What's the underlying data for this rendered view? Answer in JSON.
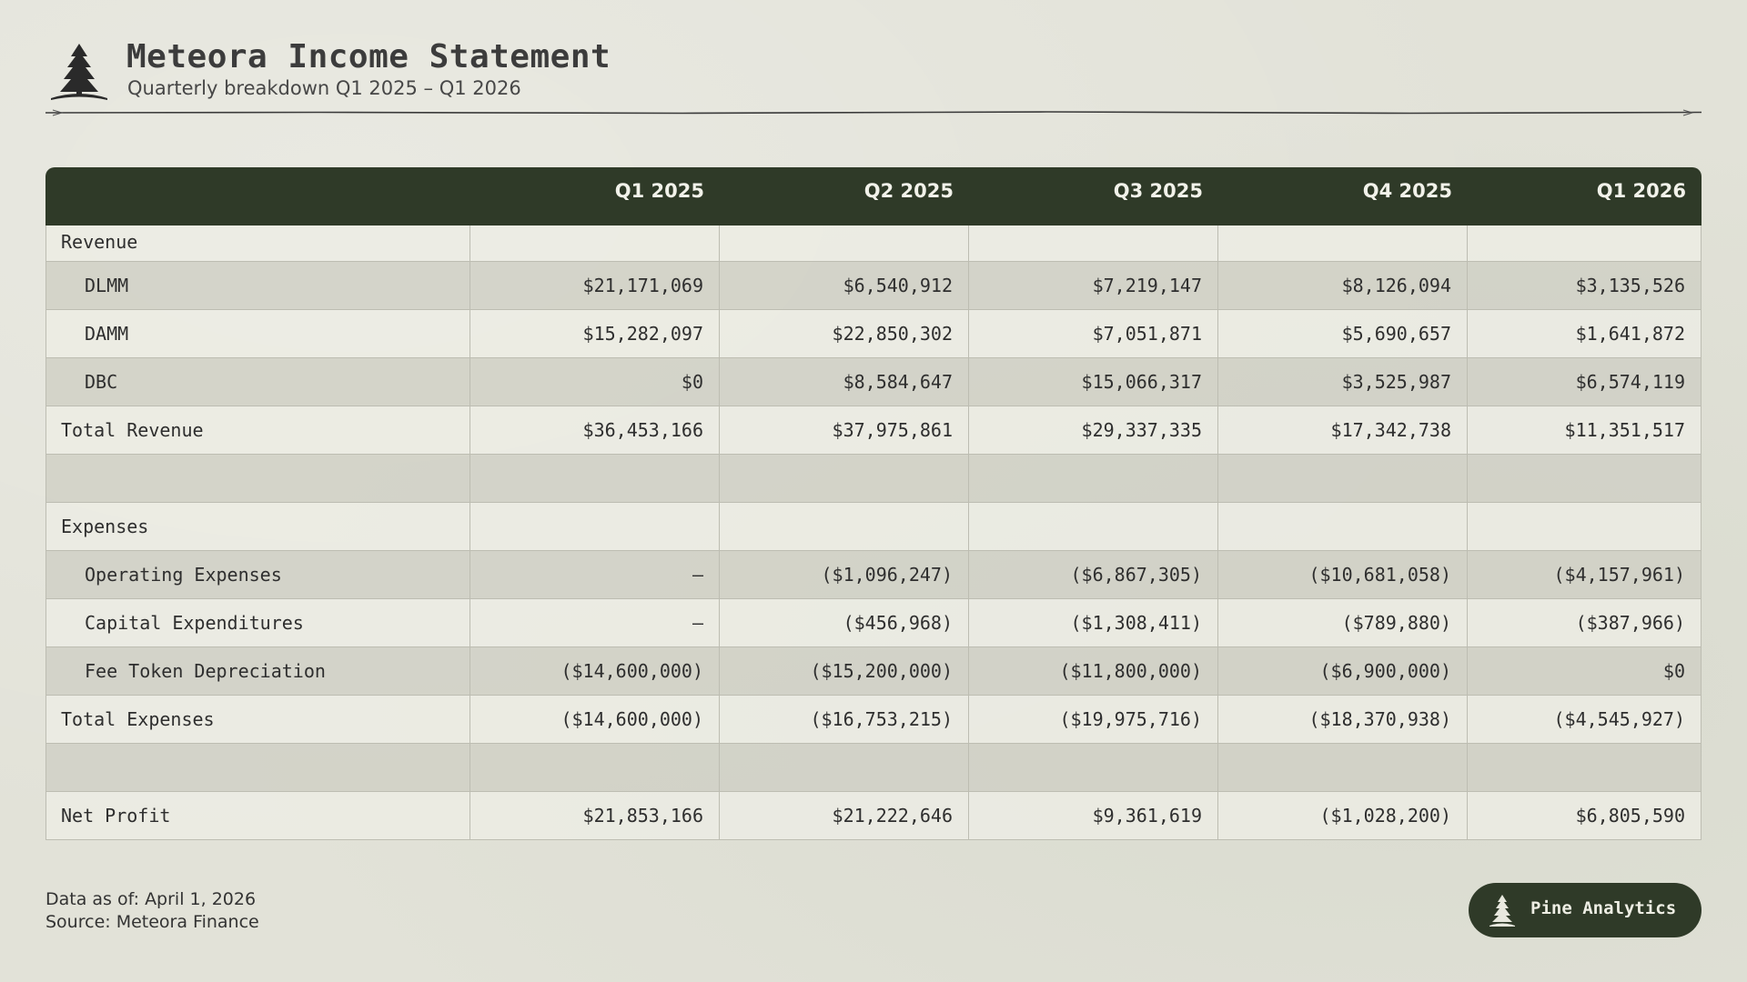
{
  "header": {
    "title": "Meteora Income Statement",
    "subtitle": "Quarterly breakdown Q1 2025 – Q1 2026",
    "logo_icon": "pine-tree-icon"
  },
  "table": {
    "columns": [
      "",
      "Q1 2025",
      "Q2 2025",
      "Q3 2025",
      "Q4 2025",
      "Q1 2026"
    ],
    "rows": [
      {
        "label": "Revenue",
        "values": [
          "",
          "",
          "",
          "",
          ""
        ]
      },
      {
        "label": "DLMM",
        "values": [
          "$21,171,069",
          "$6,540,912",
          "$7,219,147",
          "$8,126,094",
          "$3,135,526"
        ]
      },
      {
        "label": "DAMM",
        "values": [
          "$15,282,097",
          "$22,850,302",
          "$7,051,871",
          "$5,690,657",
          "$1,641,872"
        ]
      },
      {
        "label": "DBC",
        "values": [
          "$0",
          "$8,584,647",
          "$15,066,317",
          "$3,525,987",
          "$6,574,119"
        ]
      },
      {
        "label": "Total Revenue",
        "values": [
          "$36,453,166",
          "$37,975,861",
          "$29,337,335",
          "$17,342,738",
          "$11,351,517"
        ]
      },
      {
        "label": "",
        "values": [
          "",
          "",
          "",
          "",
          ""
        ]
      },
      {
        "label": "Expenses",
        "values": [
          "",
          "",
          "",
          "",
          ""
        ]
      },
      {
        "label": "Operating Expenses",
        "values": [
          "–",
          "($1,096,247)",
          "($6,867,305)",
          "($10,681,058)",
          "($4,157,961)"
        ]
      },
      {
        "label": "Capital Expenditures",
        "values": [
          "–",
          "($456,968)",
          "($1,308,411)",
          "($789,880)",
          "($387,966)"
        ]
      },
      {
        "label": "Fee Token Depreciation",
        "values": [
          "($14,600,000)",
          "($15,200,000)",
          "($11,800,000)",
          "($6,900,000)",
          "$0"
        ]
      },
      {
        "label": "Total Expenses",
        "values": [
          "($14,600,000)",
          "($16,753,215)",
          "($19,975,716)",
          "($18,370,938)",
          "($4,545,927)"
        ]
      },
      {
        "label": "",
        "values": [
          "",
          "",
          "",
          "",
          ""
        ]
      },
      {
        "label": "Net Profit",
        "values": [
          "$21,853,166",
          "$21,222,646",
          "$9,361,619",
          "($1,028,200)",
          "$6,805,590"
        ]
      }
    ]
  },
  "footer": {
    "data_as_of": "Data as of: April 1, 2026",
    "source": "Source: Meteora Finance"
  },
  "badge": {
    "label": "Pine Analytics",
    "icon": "pine-tree-icon"
  },
  "colors": {
    "header_bg": "#2f3a28",
    "page_bg": "#e2e2d8"
  }
}
